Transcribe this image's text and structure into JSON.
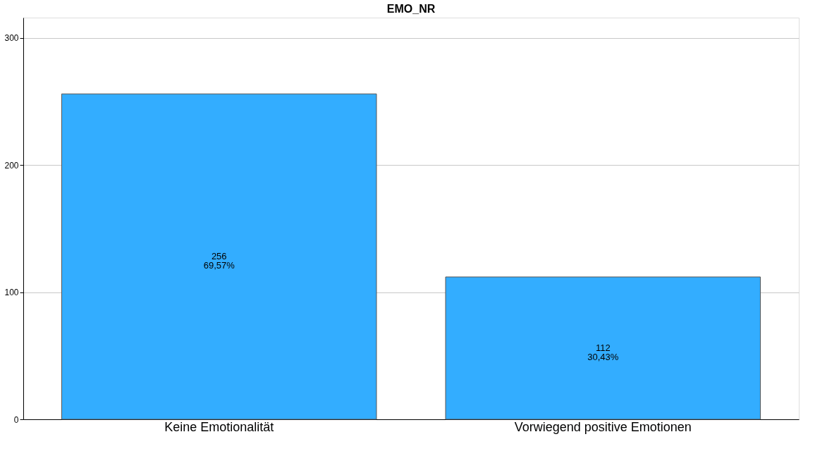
{
  "chart_data": {
    "type": "bar",
    "title": "EMO_NR",
    "categories": [
      "Keine Emotionalität",
      "Vorwiegend positive Emotionen"
    ],
    "values": [
      256,
      112
    ],
    "color": "#33adff",
    "value_labels": [
      "256\n69,57%",
      "112\n30,43%"
    ],
    "ylim": [
      0,
      316
    ],
    "yticks": [
      0,
      100,
      200,
      300
    ],
    "grid": "y"
  }
}
